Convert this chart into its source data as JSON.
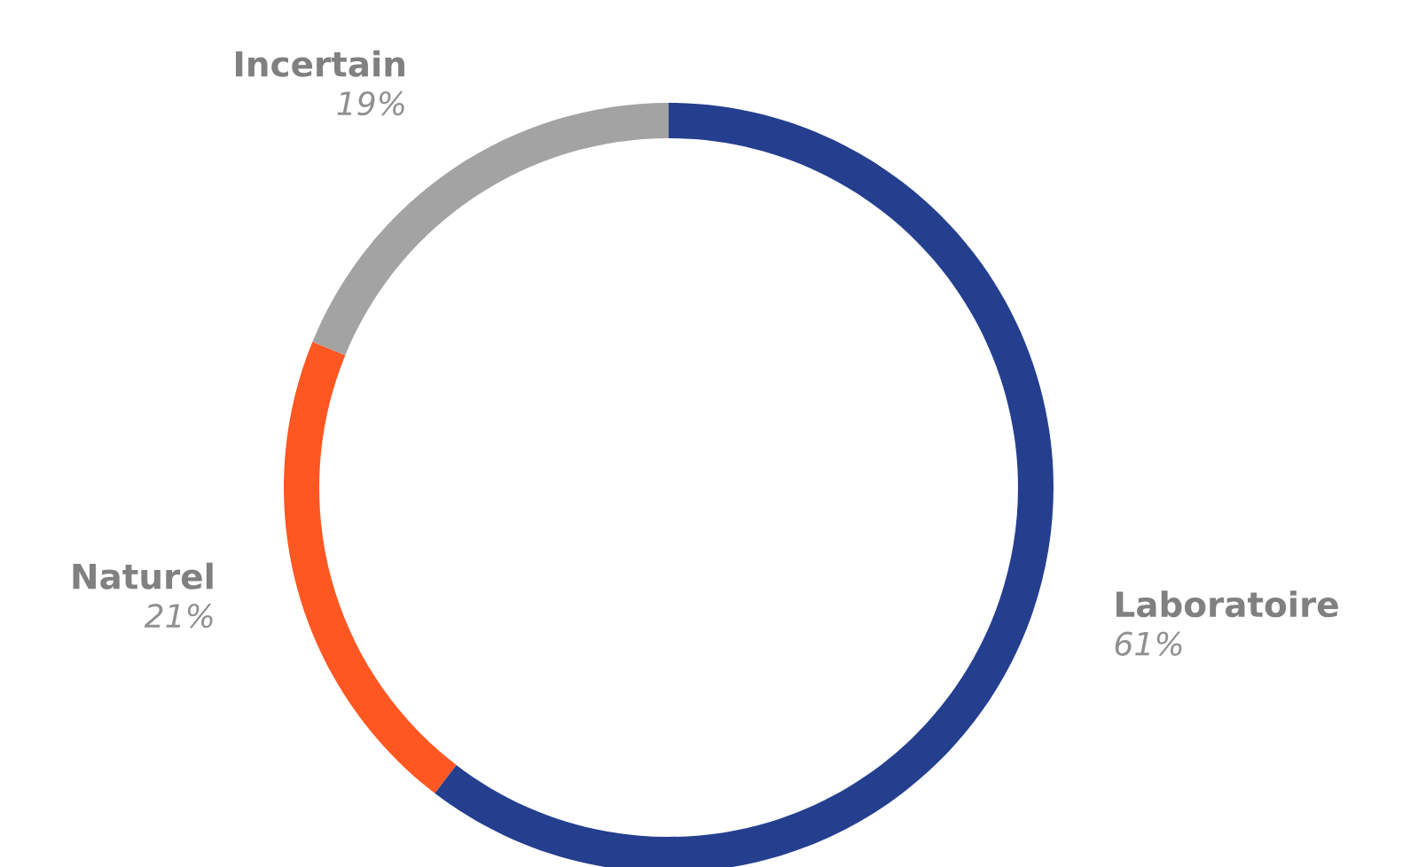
{
  "chart_data": {
    "type": "donut",
    "categories": [
      "Laboratoire",
      "Naturel",
      "Incertain"
    ],
    "values": [
      61,
      21,
      19
    ],
    "value_labels": [
      "61%",
      "21%",
      "19%"
    ],
    "colors": [
      "#253f8f",
      "#ff5722",
      "#a3a3a3"
    ],
    "legend": false
  }
}
